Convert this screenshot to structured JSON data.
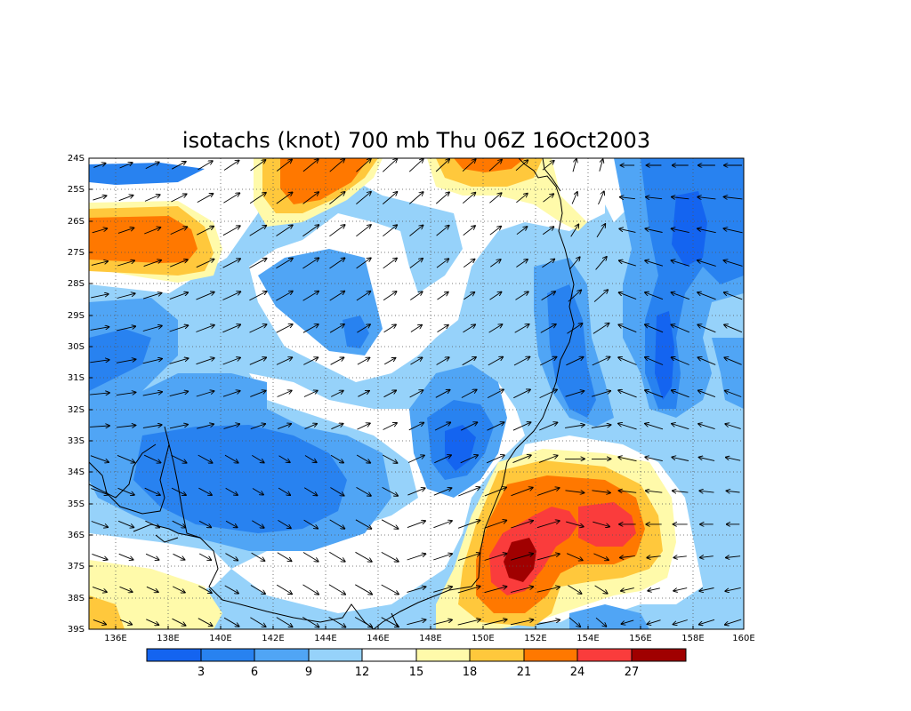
{
  "title": "isotachs (knot) 700 mb Thu 06Z 16Oct2003",
  "lat_labels": [
    "24S",
    "25S",
    "26S",
    "27S",
    "28S",
    "29S",
    "30S",
    "31S",
    "32S",
    "33S",
    "34S",
    "35S",
    "36S",
    "37S",
    "38S",
    "39S"
  ],
  "lon_labels": [
    "136E",
    "138E",
    "140E",
    "142E",
    "144E",
    "146E",
    "148E",
    "150E",
    "152E",
    "154E",
    "156E",
    "158E",
    "160E"
  ],
  "colorbar": {
    "colors": [
      "#1464f0",
      "#2882f0",
      "#50a5f5",
      "#96d2fa",
      "#ffffff",
      "#fffaaa",
      "#ffc83c",
      "#ff7800",
      "#fa3c3c",
      "#a00000"
    ],
    "labels": [
      "3",
      "6",
      "9",
      "12",
      "15",
      "18",
      "21",
      "24",
      "27"
    ]
  },
  "colors": {
    "c3": "#1464f0",
    "c6": "#2882f0",
    "c9": "#50a5f5",
    "c12": "#96d2fa",
    "c15": "#ffffff",
    "c18": "#fffaaa",
    "c21": "#ffc83c",
    "c24": "#ff7800",
    "c27": "#fa3c3c",
    "c30": "#a00000"
  }
}
